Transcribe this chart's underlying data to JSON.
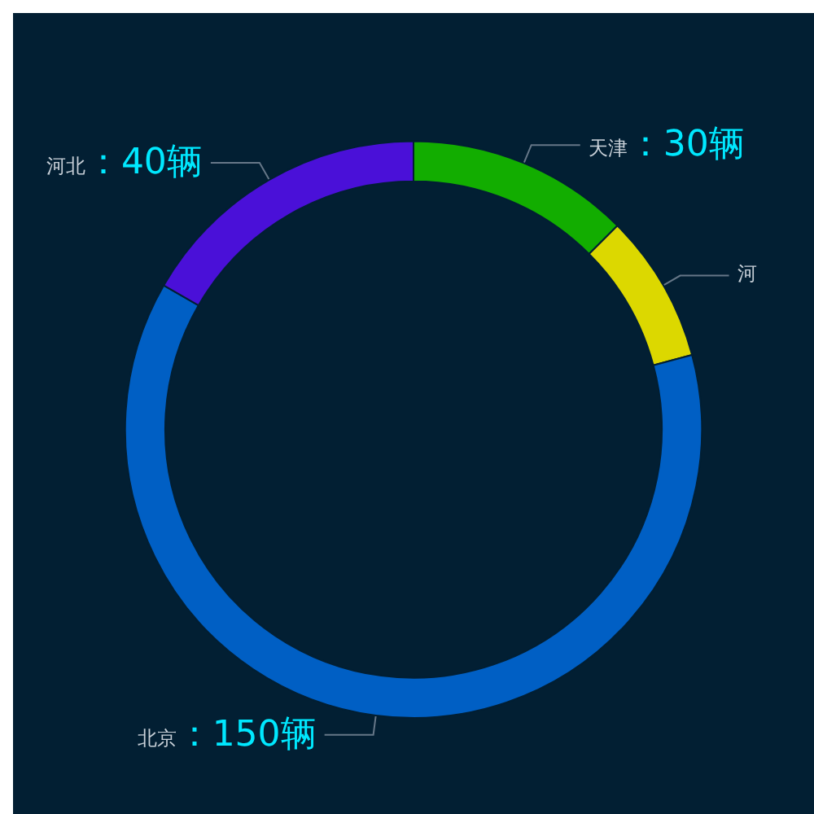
{
  "chart_data": {
    "type": "donut",
    "categories": [
      "天津",
      "河",
      "北京",
      "河北"
    ],
    "values": [
      30,
      20,
      150,
      40
    ],
    "value_labels": [
      "：30辆",
      null,
      "：150辆",
      "：40辆"
    ],
    "colors": [
      "#12ad00",
      "#dcd800",
      "#005fc4",
      "#4a10d8"
    ],
    "legend": false
  }
}
